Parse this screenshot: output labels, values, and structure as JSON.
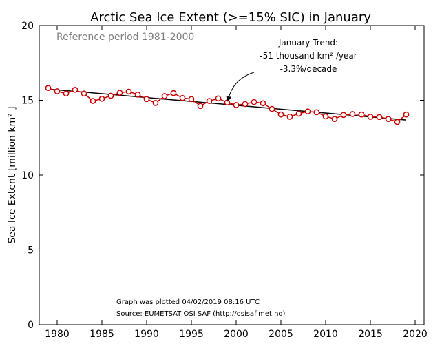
{
  "chart_data": {
    "type": "line",
    "title": "Arctic Sea Ice Extent (>=15% SIC) in January",
    "xlabel": "",
    "ylabel": "Sea Ice Extent [million km² ]",
    "xlim": [
      1978,
      2021
    ],
    "ylim": [
      0,
      20
    ],
    "xticks": [
      1980,
      1985,
      1990,
      1995,
      2000,
      2005,
      2010,
      2015,
      2020
    ],
    "yticks": [
      0,
      5,
      10,
      15,
      20
    ],
    "grid": false,
    "x": [
      1979,
      1980,
      1981,
      1982,
      1983,
      1984,
      1985,
      1986,
      1987,
      1988,
      1989,
      1990,
      1991,
      1992,
      1993,
      1994,
      1995,
      1996,
      1997,
      1998,
      1999,
      2000,
      2001,
      2002,
      2003,
      2004,
      2005,
      2006,
      2007,
      2008,
      2009,
      2010,
      2011,
      2012,
      2013,
      2014,
      2015,
      2016,
      2017,
      2018,
      2019
    ],
    "series": [
      {
        "values": [
          15.82,
          15.6,
          15.45,
          15.7,
          15.45,
          14.95,
          15.1,
          15.3,
          15.5,
          15.58,
          15.38,
          15.08,
          14.82,
          15.28,
          15.48,
          15.15,
          15.08,
          14.62,
          14.95,
          15.12,
          14.85,
          14.68,
          14.75,
          14.88,
          14.8,
          14.42,
          14.05,
          13.9,
          14.1,
          14.25,
          14.2,
          13.92,
          13.75,
          14.02,
          14.08,
          14.05,
          13.9,
          13.88,
          13.75,
          13.55,
          14.05
        ],
        "color": "#cc0000"
      }
    ],
    "trend": {
      "start": [
        1979,
        15.75
      ],
      "end": [
        2019,
        13.68
      ],
      "color": "#000000"
    },
    "annotations": {
      "reference": "Reference period 1981-2000",
      "trend_line1": "January Trend:",
      "trend_line2": "-51 thousand km² /year",
      "trend_line3": "-3.3%/decade",
      "arrow_to": [
        1999,
        14.75
      ],
      "plotted": "Graph was plotted 04/02/2019 08:16 UTC",
      "source": "Source: EUMETSAT OSI SAF (http://osisaf.met.no)"
    }
  }
}
